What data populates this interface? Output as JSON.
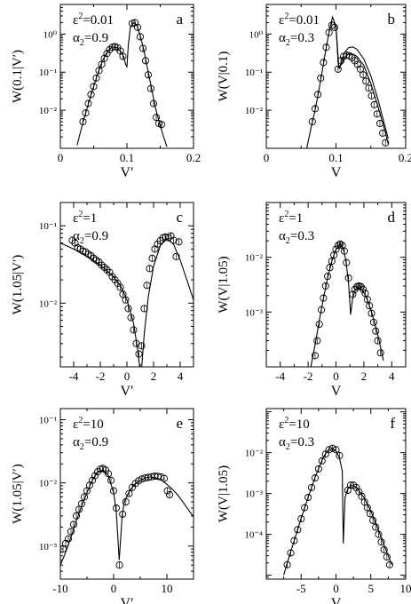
{
  "figure": {
    "panels": [
      {
        "id": "a",
        "ylabel": "W(0.1|V′)",
        "xlabel": "V′",
        "eps_label": "ε",
        "eps_sup": "2",
        "eps_value": "=0.01",
        "alpha_label": "α",
        "alpha_sub": "2",
        "alpha_value": "=0.9"
      },
      {
        "id": "b",
        "ylabel": "W(V|0.1)",
        "xlabel": "V",
        "eps_label": "ε",
        "eps_sup": "2",
        "eps_value": "=0.01",
        "alpha_label": "α",
        "alpha_sub": "2",
        "alpha_value": "=0.3"
      },
      {
        "id": "c",
        "ylabel": "W(1.05|V′)",
        "xlabel": "V′",
        "eps_label": "ε",
        "eps_sup": "2",
        "eps_value": "=1",
        "alpha_label": "α",
        "alpha_sub": "2",
        "alpha_value": "=0.9"
      },
      {
        "id": "d",
        "ylabel": "W(V|1.05)",
        "xlabel": "V",
        "eps_label": "ε",
        "eps_sup": "2",
        "eps_value": "=1",
        "alpha_label": "α",
        "alpha_sub": "2",
        "alpha_value": "=0.3"
      },
      {
        "id": "e",
        "ylabel": "W(1.05|V′)",
        "xlabel": "V′",
        "eps_label": "ε",
        "eps_sup": "2",
        "eps_value": "=10",
        "alpha_label": "α",
        "alpha_sub": "2",
        "alpha_value": "=0.9"
      },
      {
        "id": "f",
        "ylabel": "W(V|1.05)",
        "xlabel": "V",
        "eps_label": "ε",
        "eps_sup": "2",
        "eps_value": "=10",
        "alpha_label": "α",
        "alpha_sub": "2",
        "alpha_value": "=0.3"
      }
    ]
  },
  "chart_data": [
    {
      "panel": "a",
      "type": "line",
      "xlabel": "V′",
      "ylabel": "W(0.1|V′)",
      "xscale": "linear",
      "yscale": "log",
      "xlim": [
        0,
        0.2
      ],
      "ylim": [
        0.001,
        6
      ],
      "xticks": [
        0,
        0.1,
        0.2
      ],
      "xticklabels": [
        "0",
        "0.1",
        "0.2"
      ],
      "yticks": [
        0.01,
        0.1,
        1
      ],
      "yticklabels": [
        "10⁻²",
        "10⁻¹",
        "10⁰"
      ],
      "series": [
        {
          "style": "line",
          "x": [
            0.025,
            0.03,
            0.035,
            0.04,
            0.045,
            0.05,
            0.055,
            0.06,
            0.065,
            0.07,
            0.075,
            0.08,
            0.085,
            0.09,
            0.095,
            0.098,
            0.1,
            0.102,
            0.105,
            0.11,
            0.115,
            0.12,
            0.125,
            0.13,
            0.135,
            0.14,
            0.145,
            0.15,
            0.155,
            0.16
          ],
          "y": [
            0.0012,
            0.0026,
            0.0056,
            0.011,
            0.022,
            0.042,
            0.08,
            0.14,
            0.23,
            0.33,
            0.42,
            0.46,
            0.44,
            0.36,
            0.26,
            0.16,
            0.14,
            0.5,
            1.5,
            2.0,
            1.7,
            0.9,
            0.4,
            0.15,
            0.055,
            0.02,
            0.008,
            0.004,
            0.002,
            0.0011
          ]
        },
        {
          "style": "markers",
          "x": [
            0.034,
            0.038,
            0.042,
            0.046,
            0.05,
            0.054,
            0.058,
            0.062,
            0.066,
            0.07,
            0.074,
            0.078,
            0.082,
            0.086,
            0.09,
            0.094,
            0.108,
            0.112,
            0.116,
            0.12,
            0.124,
            0.128,
            0.132,
            0.136,
            0.14,
            0.144,
            0.148,
            0.152
          ],
          "y": [
            0.005,
            0.0085,
            0.015,
            0.026,
            0.042,
            0.07,
            0.11,
            0.16,
            0.23,
            0.31,
            0.39,
            0.45,
            0.47,
            0.44,
            0.36,
            0.26,
            1.9,
            2.0,
            1.5,
            0.85,
            0.42,
            0.2,
            0.085,
            0.037,
            0.015,
            0.0065,
            0.0045,
            0.0042
          ]
        }
      ]
    },
    {
      "panel": "b",
      "type": "line",
      "xlabel": "V",
      "ylabel": "W(V|0.1)",
      "xscale": "linear",
      "yscale": "log",
      "xlim": [
        0,
        0.2
      ],
      "ylim": [
        0.001,
        6
      ],
      "xticks": [
        0,
        0.1,
        0.2
      ],
      "xticklabels": [
        "0",
        "0.1",
        "0.2"
      ],
      "yticks": [
        0.01,
        0.1,
        1
      ],
      "yticklabels": [
        "10⁻²",
        "10⁻¹",
        "10⁰"
      ],
      "series": [
        {
          "style": "line",
          "x": [
            0.058,
            0.065,
            0.07,
            0.075,
            0.08,
            0.085,
            0.09,
            0.095,
            0.1,
            0.103,
            0.105,
            0.108,
            0.112,
            0.118,
            0.124,
            0.13,
            0.14,
            0.15,
            0.16,
            0.17,
            0.175
          ],
          "y": [
            0.001,
            0.004,
            0.01,
            0.03,
            0.1,
            0.35,
            1.1,
            2.8,
            1.6,
            0.18,
            0.12,
            0.2,
            0.32,
            0.44,
            0.46,
            0.4,
            0.22,
            0.08,
            0.02,
            0.004,
            0.0018
          ]
        },
        {
          "style": "line",
          "x": [
            0.1,
            0.104,
            0.108,
            0.112,
            0.118,
            0.124,
            0.13,
            0.14,
            0.15,
            0.16,
            0.17,
            0.175
          ],
          "y": [
            1.6,
            0.14,
            0.16,
            0.24,
            0.3,
            0.3,
            0.26,
            0.15,
            0.05,
            0.013,
            0.003,
            0.0013
          ]
        },
        {
          "style": "markers",
          "x": [
            0.066,
            0.07,
            0.074,
            0.078,
            0.082,
            0.086,
            0.09,
            0.094,
            0.098,
            0.103,
            0.107,
            0.111,
            0.115,
            0.119,
            0.123,
            0.127,
            0.131,
            0.135,
            0.139,
            0.143,
            0.147,
            0.151,
            0.155,
            0.159,
            0.163,
            0.167,
            0.171
          ],
          "y": [
            0.005,
            0.011,
            0.026,
            0.07,
            0.18,
            0.45,
            1.1,
            1.7,
            1.5,
            0.12,
            0.2,
            0.26,
            0.28,
            0.27,
            0.24,
            0.2,
            0.16,
            0.12,
            0.085,
            0.058,
            0.038,
            0.024,
            0.014,
            0.008,
            0.0045,
            0.0025,
            0.0014
          ]
        }
      ]
    },
    {
      "panel": "c",
      "type": "line",
      "xlabel": "V′",
      "ylabel": "W(1.05|V′)",
      "xscale": "linear",
      "yscale": "log",
      "xlim": [
        -5,
        5
      ],
      "ylim": [
        0.0015,
        0.2
      ],
      "xticks": [
        -4,
        -2,
        0,
        2,
        4
      ],
      "xticklabels": [
        "-4",
        "-2",
        "0",
        "2",
        "4"
      ],
      "yticks": [
        0.01,
        0.1
      ],
      "yticklabels": [
        "10⁻²",
        "10⁻¹"
      ],
      "series": [
        {
          "style": "line",
          "x": [
            -5,
            -4,
            -3,
            -2,
            -1,
            -0.5,
            0,
            0.5,
            0.8,
            1.05,
            1.3,
            1.6,
            2,
            2.5,
            3,
            3.5,
            4,
            4.5,
            5
          ],
          "y": [
            0.06,
            0.05,
            0.04,
            0.031,
            0.022,
            0.017,
            0.011,
            0.0055,
            0.0025,
            0.0011,
            0.004,
            0.012,
            0.03,
            0.055,
            0.068,
            0.058,
            0.036,
            0.02,
            0.011
          ]
        },
        {
          "style": "markers",
          "x": [
            -4.1,
            -3.9,
            -3.7,
            -3.5,
            -3.3,
            -3.1,
            -2.9,
            -2.7,
            -2.5,
            -2.3,
            -2.1,
            -1.9,
            -1.7,
            -1.5,
            -1.3,
            -1.1,
            -0.9,
            -0.7,
            -0.5,
            -0.3,
            -0.1,
            0.1,
            0.3,
            0.5,
            0.7,
            0.9,
            1.1,
            1.3,
            1.5,
            1.7,
            1.9,
            2.1,
            2.3,
            2.5,
            2.7,
            2.9,
            3.1,
            3.3,
            3.5,
            3.7,
            3.9
          ],
          "y": [
            0.065,
            0.06,
            0.052,
            0.05,
            0.047,
            0.046,
            0.043,
            0.041,
            0.038,
            0.036,
            0.034,
            0.031,
            0.029,
            0.027,
            0.025,
            0.022,
            0.02,
            0.018,
            0.016,
            0.013,
            0.011,
            0.0085,
            0.0065,
            0.0045,
            0.003,
            0.0022,
            0.0028,
            0.0085,
            0.017,
            0.028,
            0.038,
            0.05,
            0.058,
            0.064,
            0.07,
            0.072,
            0.07,
            0.074,
            0.065,
            0.04,
            0.062
          ]
        }
      ]
    },
    {
      "panel": "d",
      "type": "line",
      "xlabel": "V",
      "ylabel": "W(V|1.05)",
      "xscale": "linear",
      "yscale": "log",
      "xlim": [
        -5,
        5
      ],
      "ylim": [
        0.0001,
        0.1
      ],
      "xticks": [
        -4,
        -2,
        0,
        2,
        4
      ],
      "xticklabels": [
        "-4",
        "-2",
        "0",
        "2",
        "4"
      ],
      "yticks": [
        0.001,
        0.01
      ],
      "yticklabels": [
        "10⁻³",
        "10⁻²"
      ],
      "series": [
        {
          "style": "line",
          "x": [
            -1.8,
            -1.5,
            -1.2,
            -0.9,
            -0.6,
            -0.3,
            0,
            0.3,
            0.5,
            0.7,
            0.9,
            1.05,
            1.2,
            1.4,
            1.6,
            1.9,
            2.2,
            2.5,
            2.8,
            3.1,
            3.4
          ],
          "y": [
            0.0001,
            0.00025,
            0.0007,
            0.0018,
            0.0042,
            0.0085,
            0.014,
            0.017,
            0.015,
            0.009,
            0.0035,
            0.0009,
            0.0018,
            0.0026,
            0.0028,
            0.0025,
            0.0018,
            0.0011,
            0.0006,
            0.0003,
            0.00013
          ]
        },
        {
          "style": "markers",
          "x": [
            -1.5,
            -1.35,
            -1.2,
            -1.05,
            -0.9,
            -0.75,
            -0.6,
            -0.45,
            -0.3,
            -0.15,
            0,
            0.15,
            0.3,
            0.45,
            0.6,
            0.75,
            0.9,
            1.2,
            1.35,
            1.5,
            1.65,
            1.8,
            1.95,
            2.1,
            2.25,
            2.4,
            2.55,
            2.7,
            2.85,
            3.0,
            3.2
          ],
          "y": [
            0.00016,
            0.0003,
            0.0006,
            0.0011,
            0.0018,
            0.003,
            0.0045,
            0.0065,
            0.0085,
            0.011,
            0.014,
            0.0165,
            0.0175,
            0.0165,
            0.013,
            0.008,
            0.0042,
            0.0021,
            0.0026,
            0.0029,
            0.003,
            0.0029,
            0.0026,
            0.0022,
            0.0017,
            0.0013,
            0.00095,
            0.00065,
            0.00045,
            0.0003,
            0.00018
          ]
        }
      ]
    },
    {
      "panel": "e",
      "type": "line",
      "xlabel": "V′",
      "ylabel": "W(1.05|V′)",
      "xscale": "linear",
      "yscale": "log",
      "xlim": [
        -10,
        15
      ],
      "ylim": [
        0.0003,
        0.15
      ],
      "xticks": [
        -10,
        0,
        10
      ],
      "xticklabels": [
        "-10",
        "0",
        "10"
      ],
      "yticks": [
        0.001,
        0.01,
        0.1
      ],
      "yticklabels": [
        "10⁻³",
        "10⁻²",
        "10⁻¹"
      ],
      "series": [
        {
          "style": "line",
          "x": [
            -10,
            -9,
            -8,
            -7,
            -6,
            -5,
            -4,
            -3,
            -2,
            -1,
            0,
            0.5,
            1.05,
            1.6,
            2,
            3,
            4,
            5,
            6,
            7,
            8,
            9,
            10,
            11,
            12,
            13,
            14,
            15
          ],
          "y": [
            0.0005,
            0.0008,
            0.0014,
            0.0025,
            0.0043,
            0.007,
            0.011,
            0.015,
            0.016,
            0.013,
            0.007,
            0.0035,
            0.0006,
            0.003,
            0.005,
            0.0075,
            0.0095,
            0.011,
            0.012,
            0.0125,
            0.012,
            0.011,
            0.0095,
            0.008,
            0.0065,
            0.005,
            0.0038,
            0.0029
          ]
        },
        {
          "style": "markers",
          "x": [
            -9.5,
            -9,
            -8.5,
            -8,
            -7.5,
            -7,
            -6.5,
            -6,
            -5.5,
            -5,
            -4.5,
            -4,
            -3.5,
            -3,
            -2.5,
            -2,
            -1.5,
            -1,
            -0.5,
            0,
            0.5,
            1.1,
            1.7,
            2.3,
            2.9,
            3.5,
            4.1,
            4.7,
            5.3,
            5.9,
            6.5,
            7.1,
            7.7,
            8.3,
            8.9,
            9.5,
            10.1,
            10.5
          ],
          "y": [
            0.0009,
            0.0011,
            0.0013,
            0.0017,
            0.0022,
            0.003,
            0.0038,
            0.0047,
            0.006,
            0.0075,
            0.0092,
            0.011,
            0.013,
            0.015,
            0.0165,
            0.017,
            0.016,
            0.014,
            0.011,
            0.0075,
            0.004,
            0.0005,
            0.0032,
            0.005,
            0.0068,
            0.0085,
            0.0098,
            0.0108,
            0.0115,
            0.012,
            0.0122,
            0.0125,
            0.0128,
            0.0127,
            0.0124,
            0.0118,
            0.0075,
            0.0065
          ]
        }
      ]
    },
    {
      "panel": "f",
      "type": "line",
      "xlabel": "V",
      "ylabel": "W(V|1.05)",
      "xscale": "linear",
      "yscale": "log",
      "xlim": [
        -10,
        10
      ],
      "ylim": [
        8e-06,
        0.12
      ],
      "xticks": [
        -5,
        0,
        5,
        10
      ],
      "xticklabels": [
        "-5",
        "0",
        "5",
        "10"
      ],
      "yticks": [
        0.0001,
        0.001,
        0.01
      ],
      "yticklabels": [
        "10⁻⁴",
        "10⁻³",
        "10⁻²"
      ],
      "series": [
        {
          "style": "line",
          "x": [
            -7.5,
            -7,
            -6,
            -5,
            -4,
            -3,
            -2,
            -1.5,
            -1,
            -0.5,
            0,
            0.5,
            0.9,
            1.05,
            1.3,
            1.7,
            2.2,
            3,
            4,
            5,
            6,
            7,
            8
          ],
          "y": [
            1e-05,
            2e-05,
            7e-05,
            0.00025,
            0.0008,
            0.0025,
            0.0065,
            0.0095,
            0.012,
            0.0125,
            0.011,
            0.0075,
            0.0035,
            6e-05,
            0.0008,
            0.0013,
            0.0016,
            0.0014,
            0.0008,
            0.00037,
            0.00014,
            5e-05,
            1.8e-05
          ]
        },
        {
          "style": "markers",
          "x": [
            -7,
            -6.5,
            -6,
            -5.5,
            -5,
            -4.5,
            -4,
            -3.5,
            -3,
            -2.5,
            -2,
            -1.5,
            -1,
            -0.5,
            0,
            0.5,
            1.7,
            2.1,
            2.5,
            2.9,
            3.3,
            3.7,
            4.1,
            4.5,
            4.9,
            5.3,
            5.7,
            6.1,
            6.5,
            6.9,
            7.3,
            7.7
          ],
          "y": [
            1.8e-05,
            3.5e-05,
            7e-05,
            0.00013,
            0.00024,
            0.00045,
            0.0008,
            0.0014,
            0.0024,
            0.004,
            0.0063,
            0.0092,
            0.0118,
            0.0128,
            0.0118,
            0.0085,
            0.0012,
            0.0016,
            0.0016,
            0.0014,
            0.0011,
            0.00085,
            0.00062,
            0.00045,
            0.00032,
            0.00022,
            0.00015,
            0.0001,
            6.5e-05,
            4.2e-05,
            2.8e-05,
            1.8e-05
          ]
        }
      ]
    }
  ]
}
